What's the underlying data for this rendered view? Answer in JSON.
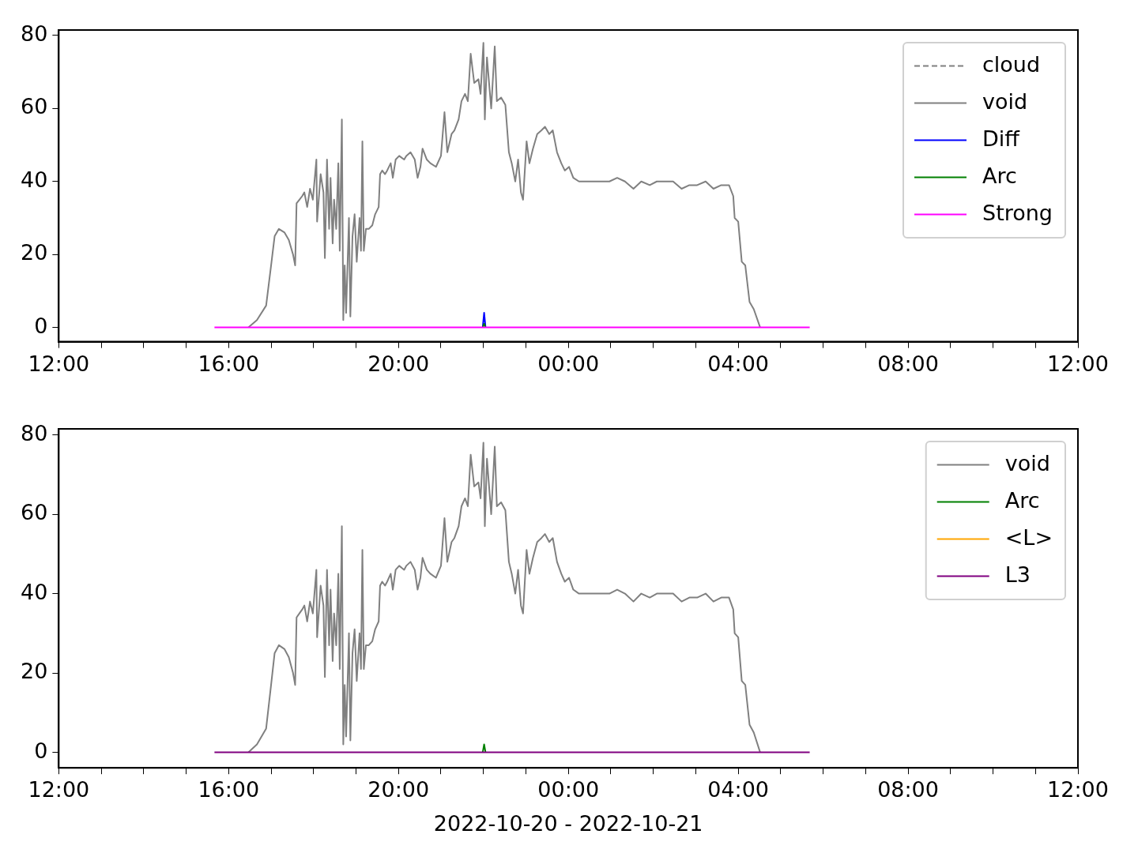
{
  "chart_data": [
    {
      "type": "line",
      "xlim": [
        "2022-10-20T12:00",
        "2022-10-21T12:00"
      ],
      "ylim": [
        -3.9,
        81.5
      ],
      "xticks": [
        {
          "value": "2022-10-20T12:00",
          "label": "12:00"
        },
        {
          "value": "2022-10-20T13:00",
          "label": null
        },
        {
          "value": "2022-10-20T14:00",
          "label": null
        },
        {
          "value": "2022-10-20T15:00",
          "label": null
        },
        {
          "value": "2022-10-20T16:00",
          "label": "16:00"
        },
        {
          "value": "2022-10-20T17:00",
          "label": null
        },
        {
          "value": "2022-10-20T18:00",
          "label": null
        },
        {
          "value": "2022-10-20T19:00",
          "label": null
        },
        {
          "value": "2022-10-20T20:00",
          "label": "20:00"
        },
        {
          "value": "2022-10-20T21:00",
          "label": null
        },
        {
          "value": "2022-10-20T22:00",
          "label": null
        },
        {
          "value": "2022-10-20T23:00",
          "label": null
        },
        {
          "value": "2022-10-21T00:00",
          "label": "00:00"
        },
        {
          "value": "2022-10-21T01:00",
          "label": null
        },
        {
          "value": "2022-10-21T02:00",
          "label": null
        },
        {
          "value": "2022-10-21T03:00",
          "label": null
        },
        {
          "value": "2022-10-21T04:00",
          "label": "04:00"
        },
        {
          "value": "2022-10-21T05:00",
          "label": null
        },
        {
          "value": "2022-10-21T06:00",
          "label": null
        },
        {
          "value": "2022-10-21T07:00",
          "label": null
        },
        {
          "value": "2022-10-21T08:00",
          "label": "08:00"
        },
        {
          "value": "2022-10-21T09:00",
          "label": null
        },
        {
          "value": "2022-10-21T10:00",
          "label": null
        },
        {
          "value": "2022-10-21T11:00",
          "label": null
        },
        {
          "value": "2022-10-21T12:00",
          "label": "12:00"
        }
      ],
      "yticks": [
        0,
        20,
        40,
        60,
        80
      ],
      "legend": "top right",
      "series": [
        {
          "name": "cloud",
          "color": "#808080",
          "line_style": "dashed"
        },
        {
          "name": "void",
          "color": "#808080",
          "x": [
            "2022-10-20T16:28",
            "2022-10-20T16:40",
            "2022-10-20T16:53",
            "2022-10-20T17:00",
            "2022-10-20T17:05",
            "2022-10-20T17:11",
            "2022-10-20T17:19",
            "2022-10-20T17:25",
            "2022-10-20T17:31",
            "2022-10-20T17:34",
            "2022-10-20T17:36",
            "2022-10-20T17:40",
            "2022-10-20T17:44",
            "2022-10-20T17:47",
            "2022-10-20T17:51",
            "2022-10-20T17:55",
            "2022-10-20T17:59",
            "2022-10-20T18:04",
            "2022-10-20T18:05",
            "2022-10-20T18:10",
            "2022-10-20T18:14",
            "2022-10-20T18:16",
            "2022-10-20T18:19",
            "2022-10-20T18:22",
            "2022-10-20T18:24",
            "2022-10-20T18:27",
            "2022-10-20T18:29",
            "2022-10-20T18:32",
            "2022-10-20T18:35",
            "2022-10-20T18:37",
            "2022-10-20T18:40",
            "2022-10-20T18:42",
            "2022-10-20T18:44",
            "2022-10-20T18:46",
            "2022-10-20T18:50",
            "2022-10-20T18:52",
            "2022-10-20T18:55",
            "2022-10-20T18:58",
            "2022-10-20T19:01",
            "2022-10-20T19:05",
            "2022-10-20T19:07",
            "2022-10-20T19:09",
            "2022-10-20T19:11",
            "2022-10-20T19:14",
            "2022-10-20T19:18",
            "2022-10-20T19:23",
            "2022-10-20T19:27",
            "2022-10-20T19:32",
            "2022-10-20T19:34",
            "2022-10-20T19:37",
            "2022-10-20T19:41",
            "2022-10-20T19:44",
            "2022-10-20T19:49",
            "2022-10-20T19:52",
            "2022-10-20T19:56",
            "2022-10-20T20:01",
            "2022-10-20T20:08",
            "2022-10-20T20:11",
            "2022-10-20T20:17",
            "2022-10-20T20:23",
            "2022-10-20T20:27",
            "2022-10-20T20:31",
            "2022-10-20T20:34",
            "2022-10-20T20:40",
            "2022-10-20T20:45",
            "2022-10-20T20:53",
            "2022-10-20T21:00",
            "2022-10-20T21:05",
            "2022-10-20T21:09",
            "2022-10-20T21:15",
            "2022-10-20T21:19",
            "2022-10-20T21:25",
            "2022-10-20T21:29",
            "2022-10-20T21:34",
            "2022-10-20T21:38",
            "2022-10-20T21:42",
            "2022-10-20T21:47",
            "2022-10-20T21:53",
            "2022-10-20T21:56",
            "2022-10-20T22:00",
            "2022-10-20T22:02",
            "2022-10-20T22:05",
            "2022-10-20T22:11",
            "2022-10-20T22:16",
            "2022-10-20T22:19",
            "2022-10-20T22:25",
            "2022-10-20T22:31",
            "2022-10-20T22:36",
            "2022-10-20T22:40",
            "2022-10-20T22:45",
            "2022-10-20T22:49",
            "2022-10-20T22:53",
            "2022-10-20T22:56",
            "2022-10-20T23:01",
            "2022-10-20T23:05",
            "2022-10-20T23:10",
            "2022-10-20T23:16",
            "2022-10-20T23:22",
            "2022-10-20T23:27",
            "2022-10-20T23:33",
            "2022-10-20T23:38",
            "2022-10-20T23:44",
            "2022-10-20T23:50",
            "2022-10-20T23:55",
            "2022-10-21T00:01",
            "2022-10-21T00:07",
            "2022-10-21T00:15",
            "2022-10-21T00:24",
            "2022-10-21T00:35",
            "2022-10-21T00:46",
            "2022-10-21T00:58",
            "2022-10-21T01:09",
            "2022-10-21T01:20",
            "2022-10-21T01:32",
            "2022-10-21T01:43",
            "2022-10-21T01:55",
            "2022-10-21T02:05",
            "2022-10-21T02:17",
            "2022-10-21T02:28",
            "2022-10-21T02:40",
            "2022-10-21T02:51",
            "2022-10-21T03:02",
            "2022-10-21T03:14",
            "2022-10-21T03:25",
            "2022-10-21T03:36",
            "2022-10-21T03:47",
            "2022-10-21T03:53",
            "2022-10-21T03:55",
            "2022-10-21T04:00",
            "2022-10-21T04:05",
            "2022-10-21T04:10",
            "2022-10-21T04:16",
            "2022-10-21T04:22",
            "2022-10-21T04:31"
          ],
          "values": [
            0,
            2,
            6,
            17,
            25,
            27,
            26,
            24,
            20,
            17,
            34,
            35,
            36,
            37,
            33,
            38,
            35,
            46,
            29,
            42,
            37,
            19,
            46,
            27,
            41,
            23,
            35,
            27,
            45,
            21,
            57,
            2,
            17,
            4,
            30,
            3,
            25,
            31,
            18,
            30,
            21,
            51,
            21,
            27,
            27,
            28,
            31,
            33,
            42,
            43,
            42,
            43,
            45,
            41,
            46,
            47,
            46,
            47,
            48,
            46,
            41,
            44,
            49,
            46,
            45,
            44,
            47,
            59,
            48,
            53,
            54,
            57,
            62,
            64,
            62,
            75,
            67,
            68,
            64,
            78,
            57,
            74,
            60,
            77,
            62,
            63,
            61,
            48,
            45,
            40,
            46,
            37,
            35,
            51,
            45,
            49,
            53,
            54,
            55,
            53,
            54,
            48,
            45,
            43,
            44,
            41,
            40,
            40,
            40,
            40,
            40,
            41,
            40,
            38,
            40,
            39,
            40,
            40,
            40,
            38,
            39,
            39,
            40,
            38,
            39,
            39,
            36,
            30,
            29,
            18,
            17,
            7,
            5,
            0
          ]
        },
        {
          "name": "Diff",
          "color": "#0000ff",
          "x": [
            "2022-10-20T21:59",
            "2022-10-20T22:01",
            "2022-10-20T22:03"
          ],
          "values": [
            0,
            4,
            0
          ]
        },
        {
          "name": "Arc",
          "color": "#008000",
          "x": [
            "2022-10-20T21:59",
            "2022-10-20T22:01",
            "2022-10-20T22:03"
          ],
          "values": [
            0,
            1,
            0
          ]
        },
        {
          "name": "Strong",
          "color": "#ff00ff",
          "x": [
            "2022-10-20T15:40",
            "2022-10-21T05:41"
          ],
          "values": [
            0,
            0
          ]
        }
      ]
    },
    {
      "type": "line",
      "xlim": [
        "2022-10-20T12:00",
        "2022-10-21T12:00"
      ],
      "ylim": [
        -3.9,
        81.5
      ],
      "xlabel": "2022-10-20 - 2022-10-21",
      "xticks": [
        {
          "value": "2022-10-20T12:00",
          "label": "12:00"
        },
        {
          "value": "2022-10-20T13:00",
          "label": null
        },
        {
          "value": "2022-10-20T14:00",
          "label": null
        },
        {
          "value": "2022-10-20T15:00",
          "label": null
        },
        {
          "value": "2022-10-20T16:00",
          "label": "16:00"
        },
        {
          "value": "2022-10-20T17:00",
          "label": null
        },
        {
          "value": "2022-10-20T18:00",
          "label": null
        },
        {
          "value": "2022-10-20T19:00",
          "label": null
        },
        {
          "value": "2022-10-20T20:00",
          "label": "20:00"
        },
        {
          "value": "2022-10-20T21:00",
          "label": null
        },
        {
          "value": "2022-10-20T22:00",
          "label": null
        },
        {
          "value": "2022-10-20T23:00",
          "label": null
        },
        {
          "value": "2022-10-21T00:00",
          "label": "00:00"
        },
        {
          "value": "2022-10-21T01:00",
          "label": null
        },
        {
          "value": "2022-10-21T02:00",
          "label": null
        },
        {
          "value": "2022-10-21T03:00",
          "label": null
        },
        {
          "value": "2022-10-21T04:00",
          "label": "04:00"
        },
        {
          "value": "2022-10-21T05:00",
          "label": null
        },
        {
          "value": "2022-10-21T06:00",
          "label": null
        },
        {
          "value": "2022-10-21T07:00",
          "label": null
        },
        {
          "value": "2022-10-21T08:00",
          "label": "08:00"
        },
        {
          "value": "2022-10-21T09:00",
          "label": null
        },
        {
          "value": "2022-10-21T10:00",
          "label": null
        },
        {
          "value": "2022-10-21T11:00",
          "label": null
        },
        {
          "value": "2022-10-21T12:00",
          "label": "12:00"
        }
      ],
      "yticks": [
        0,
        20,
        40,
        60,
        80
      ],
      "legend": "top right",
      "series": [
        {
          "name": "void",
          "color": "#808080",
          "x": [
            "2022-10-20T16:28",
            "2022-10-20T16:40",
            "2022-10-20T16:53",
            "2022-10-20T17:00",
            "2022-10-20T17:05",
            "2022-10-20T17:11",
            "2022-10-20T17:19",
            "2022-10-20T17:25",
            "2022-10-20T17:31",
            "2022-10-20T17:34",
            "2022-10-20T17:36",
            "2022-10-20T17:40",
            "2022-10-20T17:44",
            "2022-10-20T17:47",
            "2022-10-20T17:51",
            "2022-10-20T17:55",
            "2022-10-20T17:59",
            "2022-10-20T18:04",
            "2022-10-20T18:05",
            "2022-10-20T18:10",
            "2022-10-20T18:14",
            "2022-10-20T18:16",
            "2022-10-20T18:19",
            "2022-10-20T18:22",
            "2022-10-20T18:24",
            "2022-10-20T18:27",
            "2022-10-20T18:29",
            "2022-10-20T18:32",
            "2022-10-20T18:35",
            "2022-10-20T18:37",
            "2022-10-20T18:40",
            "2022-10-20T18:42",
            "2022-10-20T18:44",
            "2022-10-20T18:46",
            "2022-10-20T18:50",
            "2022-10-20T18:52",
            "2022-10-20T18:55",
            "2022-10-20T18:58",
            "2022-10-20T19:01",
            "2022-10-20T19:05",
            "2022-10-20T19:07",
            "2022-10-20T19:09",
            "2022-10-20T19:11",
            "2022-10-20T19:14",
            "2022-10-20T19:18",
            "2022-10-20T19:23",
            "2022-10-20T19:27",
            "2022-10-20T19:32",
            "2022-10-20T19:34",
            "2022-10-20T19:37",
            "2022-10-20T19:41",
            "2022-10-20T19:44",
            "2022-10-20T19:49",
            "2022-10-20T19:52",
            "2022-10-20T19:56",
            "2022-10-20T20:01",
            "2022-10-20T20:08",
            "2022-10-20T20:11",
            "2022-10-20T20:17",
            "2022-10-20T20:23",
            "2022-10-20T20:27",
            "2022-10-20T20:31",
            "2022-10-20T20:34",
            "2022-10-20T20:40",
            "2022-10-20T20:45",
            "2022-10-20T20:53",
            "2022-10-20T21:00",
            "2022-10-20T21:05",
            "2022-10-20T21:09",
            "2022-10-20T21:15",
            "2022-10-20T21:19",
            "2022-10-20T21:25",
            "2022-10-20T21:29",
            "2022-10-20T21:34",
            "2022-10-20T21:38",
            "2022-10-20T21:42",
            "2022-10-20T21:47",
            "2022-10-20T21:53",
            "2022-10-20T21:56",
            "2022-10-20T22:00",
            "2022-10-20T22:02",
            "2022-10-20T22:05",
            "2022-10-20T22:11",
            "2022-10-20T22:16",
            "2022-10-20T22:19",
            "2022-10-20T22:25",
            "2022-10-20T22:31",
            "2022-10-20T22:36",
            "2022-10-20T22:40",
            "2022-10-20T22:45",
            "2022-10-20T22:49",
            "2022-10-20T22:53",
            "2022-10-20T22:56",
            "2022-10-20T23:01",
            "2022-10-20T23:05",
            "2022-10-20T23:10",
            "2022-10-20T23:16",
            "2022-10-20T23:22",
            "2022-10-20T23:27",
            "2022-10-20T23:33",
            "2022-10-20T23:38",
            "2022-10-20T23:44",
            "2022-10-20T23:50",
            "2022-10-20T23:55",
            "2022-10-21T00:01",
            "2022-10-21T00:07",
            "2022-10-21T00:15",
            "2022-10-21T00:24",
            "2022-10-21T00:35",
            "2022-10-21T00:46",
            "2022-10-21T00:58",
            "2022-10-21T01:09",
            "2022-10-21T01:20",
            "2022-10-21T01:32",
            "2022-10-21T01:43",
            "2022-10-21T01:55",
            "2022-10-21T02:05",
            "2022-10-21T02:17",
            "2022-10-21T02:28",
            "2022-10-21T02:40",
            "2022-10-21T02:51",
            "2022-10-21T03:02",
            "2022-10-21T03:14",
            "2022-10-21T03:25",
            "2022-10-21T03:36",
            "2022-10-21T03:47",
            "2022-10-21T03:53",
            "2022-10-21T03:55",
            "2022-10-21T04:00",
            "2022-10-21T04:05",
            "2022-10-21T04:10",
            "2022-10-21T04:16",
            "2022-10-21T04:22",
            "2022-10-21T04:31"
          ],
          "values": [
            0,
            2,
            6,
            17,
            25,
            27,
            26,
            24,
            20,
            17,
            34,
            35,
            36,
            37,
            33,
            38,
            35,
            46,
            29,
            42,
            37,
            19,
            46,
            27,
            41,
            23,
            35,
            27,
            45,
            21,
            57,
            2,
            17,
            4,
            30,
            3,
            25,
            31,
            18,
            30,
            21,
            51,
            21,
            27,
            27,
            28,
            31,
            33,
            42,
            43,
            42,
            43,
            45,
            41,
            46,
            47,
            46,
            47,
            48,
            46,
            41,
            44,
            49,
            46,
            45,
            44,
            47,
            59,
            48,
            53,
            54,
            57,
            62,
            64,
            62,
            75,
            67,
            68,
            64,
            78,
            57,
            74,
            60,
            77,
            62,
            63,
            61,
            48,
            45,
            40,
            46,
            37,
            35,
            51,
            45,
            49,
            53,
            54,
            55,
            53,
            54,
            48,
            45,
            43,
            44,
            41,
            40,
            40,
            40,
            40,
            40,
            41,
            40,
            38,
            40,
            39,
            40,
            40,
            40,
            38,
            39,
            39,
            40,
            38,
            39,
            39,
            36,
            30,
            29,
            18,
            17,
            7,
            5,
            0
          ]
        },
        {
          "name": "Arc",
          "color": "#008000",
          "x": [
            "2022-10-20T21:59",
            "2022-10-20T22:01",
            "2022-10-20T22:03"
          ],
          "values": [
            0,
            2,
            0
          ]
        },
        {
          "name": "<L>",
          "color": "#ffa500"
        },
        {
          "name": "L3",
          "color": "#800080",
          "x": [
            "2022-10-20T15:40",
            "2022-10-21T05:41"
          ],
          "values": [
            0,
            0
          ]
        }
      ]
    }
  ]
}
